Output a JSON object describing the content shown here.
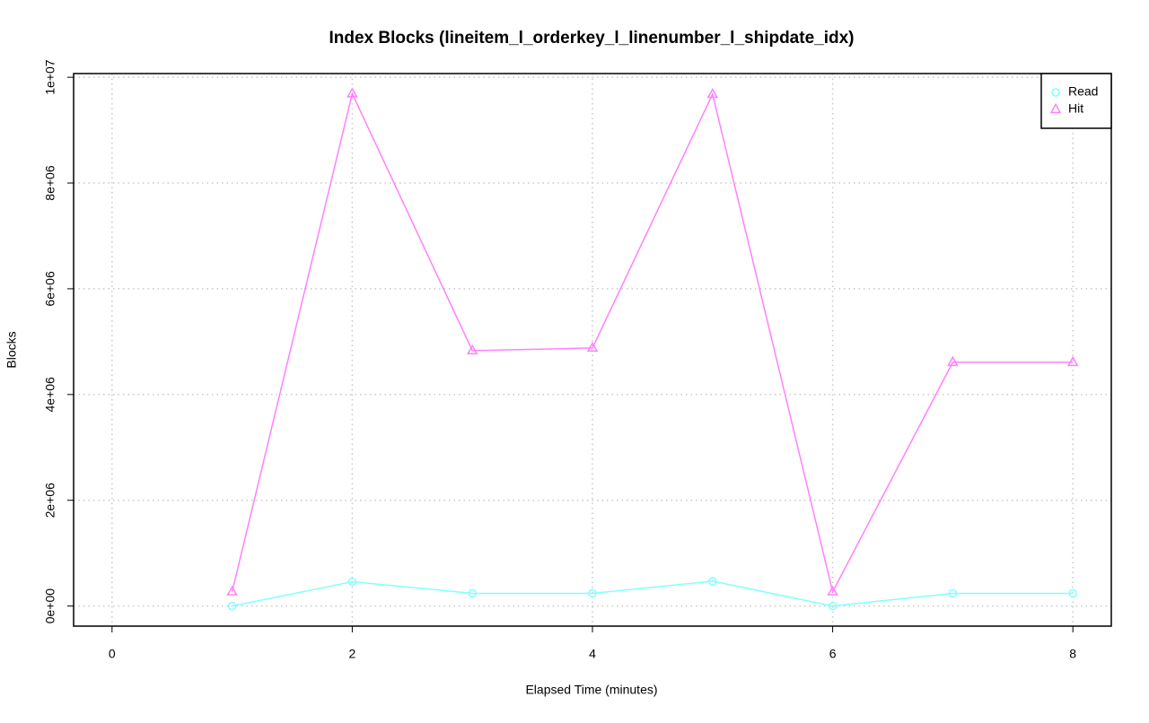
{
  "chart_data": {
    "type": "line",
    "title": "Index Blocks (lineitem_l_orderkey_l_linenumber_l_shipdate_idx)",
    "x_label": "Elapsed Time (minutes)",
    "y_label": "Blocks",
    "x": [
      1,
      2,
      3,
      4,
      5,
      6,
      7,
      8
    ],
    "series": [
      {
        "name": "Read",
        "color": "#80ffff",
        "marker": "circle",
        "values": [
          0,
          460000,
          240000,
          240000,
          470000,
          0,
          240000,
          240000
        ]
      },
      {
        "name": "Hit",
        "color": "#ff80ff",
        "marker": "triangle",
        "values": [
          270000,
          9690000,
          4830000,
          4880000,
          9680000,
          270000,
          4610000,
          4610000
        ]
      }
    ],
    "xlim": [
      -0.32,
      8.32
    ],
    "ylim": [
      -380000,
      10070000
    ],
    "xticks": [
      0,
      2,
      4,
      6,
      8
    ],
    "yticks": [
      {
        "value": 0,
        "label": "0e+00"
      },
      {
        "value": 2000000,
        "label": "2e+06"
      },
      {
        "value": 4000000,
        "label": "4e+06"
      },
      {
        "value": 6000000,
        "label": "6e+06"
      },
      {
        "value": 8000000,
        "label": "8e+06"
      },
      {
        "value": 10000000,
        "label": "1e+07"
      }
    ],
    "grid": true,
    "legend": "top-right"
  }
}
